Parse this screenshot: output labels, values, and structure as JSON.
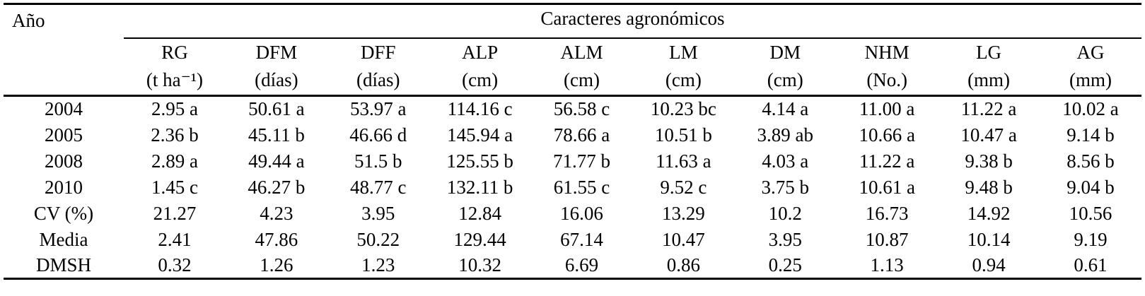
{
  "table": {
    "year_header": "Año",
    "group_header": "Caracteres agronómicos",
    "text_color": "#000000",
    "rule_color": "#000000",
    "background_color": "#ffffff",
    "columns": [
      {
        "code": "RG",
        "unit": "(t ha⁻¹)"
      },
      {
        "code": "DFM",
        "unit": "(días)"
      },
      {
        "code": "DFF",
        "unit": "(días)"
      },
      {
        "code": "ALP",
        "unit": "(cm)"
      },
      {
        "code": "ALM",
        "unit": "(cm)"
      },
      {
        "code": "LM",
        "unit": "(cm)"
      },
      {
        "code": "DM",
        "unit": "(cm)"
      },
      {
        "code": "NHM",
        "unit": "(No.)"
      },
      {
        "code": "LG",
        "unit": "(mm)"
      },
      {
        "code": "AG",
        "unit": "(mm)"
      }
    ],
    "rows": [
      {
        "label": "2004",
        "values": [
          "2.95 a",
          "50.61 a",
          "53.97 a",
          "114.16 c",
          "56.58 c",
          "10.23 bc",
          "4.14 a",
          "11.00 a",
          "11.22 a",
          "10.02 a"
        ]
      },
      {
        "label": "2005",
        "values": [
          "2.36 b",
          "45.11 b",
          "46.66 d",
          "145.94 a",
          "78.66 a",
          "10.51 b",
          "3.89 ab",
          "10.66 a",
          "10.47 a",
          "9.14 b"
        ]
      },
      {
        "label": "2008",
        "values": [
          "2.89 a",
          "49.44 a",
          "51.5 b",
          "125.55 b",
          "71.77 b",
          "11.63 a",
          "4.03 a",
          "11.22 a",
          "9.38 b",
          "8.56 b"
        ]
      },
      {
        "label": "2010",
        "values": [
          "1.45 c",
          "46.27 b",
          "48.77 c",
          "132.11 b",
          "61.55 c",
          "9.52 c",
          "3.75 b",
          "10.61 a",
          "9.48 b",
          "9.04 b"
        ]
      },
      {
        "label": "CV (%)",
        "values": [
          "21.27",
          "4.23",
          "3.95",
          "12.84",
          "16.06",
          "13.29",
          "10.2",
          "16.73",
          "14.92",
          "10.56"
        ]
      },
      {
        "label": "Media",
        "values": [
          "2.41",
          "47.86",
          "50.22",
          "129.44",
          "67.14",
          "10.47",
          "3.95",
          "10.87",
          "10.14",
          "9.19"
        ]
      },
      {
        "label": "DMSH",
        "values": [
          "0.32",
          "1.26",
          "1.23",
          "10.32",
          "6.69",
          "0.86",
          "0.25",
          "1.13",
          "0.94",
          "0.61"
        ]
      }
    ]
  }
}
